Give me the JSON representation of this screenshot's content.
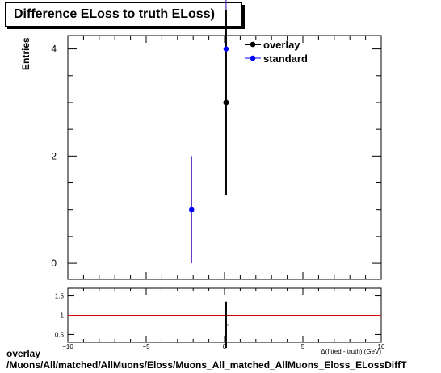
{
  "title": "Difference ELoss to truth ELoss)",
  "ylabel": "Entries",
  "xlabel": "Δ(fitted - truth) (GeV)",
  "footer": {
    "line1": "overlay",
    "line2": "/Muons/All/matched/AllMuons/Eloss/Muons_All_matched_AllMuons_Eloss_ELossDiffT"
  },
  "colors": {
    "overlay": "#000000",
    "standard": "#0000ff",
    "ratio_line": "#cc0000",
    "standard_errbar": "#3300aa"
  },
  "chart_data": [
    {
      "type": "scatter",
      "xlim": [
        -10,
        10
      ],
      "ylim": [
        -0.3,
        4.25
      ],
      "y_ticks": [
        0,
        2,
        4
      ],
      "x_ticks": [
        -10,
        -5,
        0,
        5,
        10
      ],
      "grid": false,
      "legend_position": "top-right",
      "series": [
        {
          "name": "overlay",
          "color": "#000000",
          "points": [
            {
              "x": 0.1,
              "y": 3,
              "yerr": 1.73
            }
          ]
        },
        {
          "name": "standard",
          "color": "#0000ff",
          "points": [
            {
              "x": -2.1,
              "y": 1,
              "yerr": 1
            },
            {
              "x": 0.1,
              "y": 4,
              "yerr": 2
            }
          ]
        }
      ]
    },
    {
      "type": "scatter",
      "xlim": [
        -10,
        10
      ],
      "ylim": [
        0.3,
        1.7
      ],
      "y_ticks": [
        0.5,
        1,
        1.5
      ],
      "y_tick_labels": [
        "0.5",
        "1",
        "1.5"
      ],
      "x_ticks": [
        -10,
        -5,
        0,
        5,
        10
      ],
      "x_tick_labels": [
        "−10",
        "−5",
        "0",
        "5",
        "10"
      ],
      "reference_line": 1,
      "series": [
        {
          "name": "ratio",
          "color": "#000000",
          "points": [
            {
              "x": 0.1,
              "y": 0.75,
              "yerr": 0.6
            }
          ]
        }
      ]
    }
  ]
}
